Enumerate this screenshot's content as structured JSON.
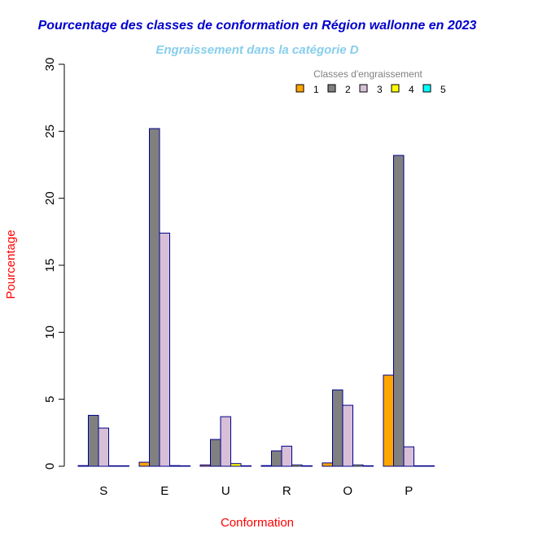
{
  "chart_data": {
    "type": "bar",
    "title": "Pourcentage des classes de conformation en Région wallonne en 2023",
    "subtitle": "Engraissement dans la catégorie D",
    "xlabel": "Conformation",
    "ylabel": "Pourcentage",
    "categories": [
      "S",
      "E",
      "U",
      "R",
      "O",
      "P"
    ],
    "ylim": [
      0,
      30
    ],
    "yticks": [
      "0",
      "5",
      "10",
      "15",
      "20",
      "25",
      "30"
    ],
    "legend": {
      "title": "Classes d'engraissement",
      "position": "top-right"
    },
    "series": [
      {
        "name": "1",
        "color": "#FFA500",
        "values": [
          0.05,
          0.3,
          0.1,
          0.05,
          0.25,
          6.8
        ]
      },
      {
        "name": "2",
        "color": "#808080",
        "values": [
          3.8,
          25.2,
          2.0,
          1.15,
          5.7,
          23.2
        ]
      },
      {
        "name": "3",
        "color": "#D8BFD8",
        "values": [
          2.85,
          17.4,
          3.7,
          1.5,
          4.55,
          1.45
        ]
      },
      {
        "name": "4",
        "color": "#FFFF00",
        "values": [
          0.0,
          0.05,
          0.2,
          0.1,
          0.1,
          0.0
        ]
      },
      {
        "name": "5",
        "color": "#00FFFF",
        "values": [
          0.0,
          0.0,
          0.0,
          0.0,
          0.0,
          0.0
        ]
      }
    ],
    "colors": {
      "title": "#0000CD",
      "subtitle": "#87CEEB",
      "axis_title": "#FF0000",
      "bar_border": "#00008B",
      "axis": "#000000"
    }
  }
}
